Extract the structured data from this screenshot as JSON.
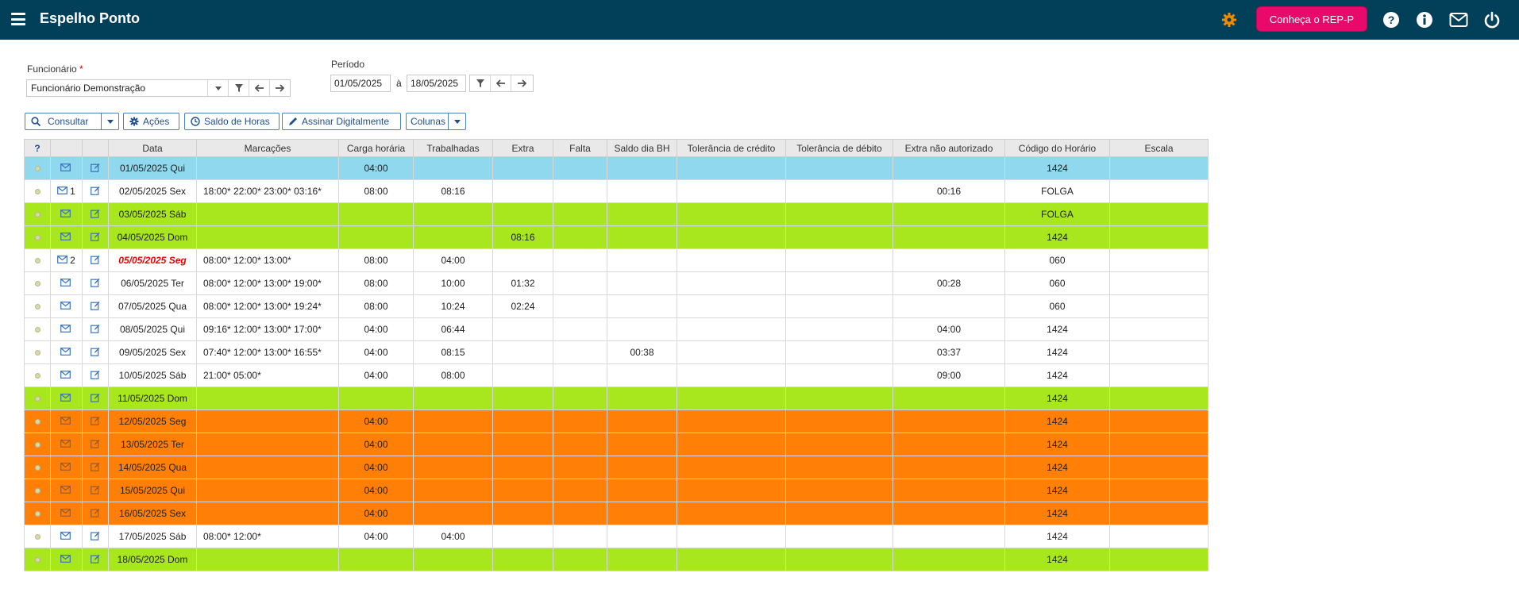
{
  "app": {
    "title": "Espelho Ponto",
    "rep_button": "Conheça o REP-P"
  },
  "form": {
    "funcionario_label": "Funcionário",
    "funcionario_required": "*",
    "funcionario_value": "Funcionário Demonstração",
    "periodo_label": "Período",
    "date_from": "01/05/2025",
    "date_sep": "à",
    "date_to": "18/05/2025"
  },
  "toolbar": {
    "consultar": "Consultar",
    "acoes": "Ações",
    "saldo": "Saldo de Horas",
    "assinar": "Assinar Digitalmente",
    "colunas": "Colunas"
  },
  "table": {
    "headers": [
      "?",
      "",
      "",
      "Data",
      "Marcações",
      "Carga horária",
      "Trabalhadas",
      "Extra",
      "Falta",
      "Saldo dia BH",
      "Tolerância de crédito",
      "Tolerância de débito",
      "Extra não autorizado",
      "Código do Horário",
      "Escala"
    ],
    "rows": [
      {
        "style": "blue",
        "msg_count": "",
        "date": "01/05/2025 Qui",
        "marc": "",
        "carga": "04:00",
        "trab": "",
        "extra": "",
        "falta": "",
        "saldo": "",
        "tcred": "",
        "tdeb": "",
        "extna": "",
        "cod": "1424",
        "escala": ""
      },
      {
        "style": "white",
        "msg_count": "1",
        "date": "02/05/2025 Sex",
        "marc": "18:00* 22:00* 23:00* 03:16*",
        "carga": "08:00",
        "trab": "08:16",
        "extra": "",
        "falta": "",
        "saldo": "",
        "tcred": "",
        "tdeb": "",
        "extna": "00:16",
        "cod": "FOLGA",
        "escala": ""
      },
      {
        "style": "green",
        "msg_count": "",
        "date": "03/05/2025 Sáb",
        "marc": "",
        "carga": "",
        "trab": "",
        "extra": "",
        "falta": "",
        "saldo": "",
        "tcred": "",
        "tdeb": "",
        "extna": "",
        "cod": "FOLGA",
        "escala": ""
      },
      {
        "style": "green",
        "msg_count": "",
        "date": "04/05/2025 Dom",
        "marc": "",
        "carga": "",
        "trab": "",
        "extra": "08:16",
        "falta": "",
        "saldo": "",
        "tcred": "",
        "tdeb": "",
        "extna": "",
        "cod": "1424",
        "escala": ""
      },
      {
        "style": "white",
        "msg_count": "2",
        "date": "05/05/2025 Seg",
        "date_alert": true,
        "marc": "08:00* 12:00* 13:00*",
        "carga": "08:00",
        "trab": "04:00",
        "extra": "",
        "falta": "",
        "saldo": "",
        "tcred": "",
        "tdeb": "",
        "extna": "",
        "cod": "060",
        "escala": ""
      },
      {
        "style": "white",
        "msg_count": "",
        "date": "06/05/2025 Ter",
        "marc": "08:00* 12:00* 13:00* 19:00*",
        "carga": "08:00",
        "trab": "10:00",
        "extra": "01:32",
        "falta": "",
        "saldo": "",
        "tcred": "",
        "tdeb": "",
        "extna": "00:28",
        "cod": "060",
        "escala": ""
      },
      {
        "style": "white",
        "msg_count": "",
        "date": "07/05/2025 Qua",
        "marc": "08:00* 12:00* 13:00* 19:24*",
        "carga": "08:00",
        "trab": "10:24",
        "extra": "02:24",
        "falta": "",
        "saldo": "",
        "tcred": "",
        "tdeb": "",
        "extna": "",
        "cod": "060",
        "escala": ""
      },
      {
        "style": "white",
        "msg_count": "",
        "date": "08/05/2025 Qui",
        "marc": "09:16* 12:00* 13:00* 17:00*",
        "carga": "04:00",
        "trab": "06:44",
        "extra": "",
        "falta": "",
        "saldo": "",
        "tcred": "",
        "tdeb": "",
        "extna": "04:00",
        "cod": "1424",
        "escala": ""
      },
      {
        "style": "white",
        "msg_count": "",
        "date": "09/05/2025 Sex",
        "marc": "07:40* 12:00* 13:00* 16:55*",
        "carga": "04:00",
        "trab": "08:15",
        "extra": "",
        "falta": "",
        "saldo": "00:38",
        "tcred": "",
        "tdeb": "",
        "extna": "03:37",
        "cod": "1424",
        "escala": ""
      },
      {
        "style": "white",
        "msg_count": "",
        "date": "10/05/2025 Sáb",
        "marc": "21:00* 05:00*",
        "carga": "04:00",
        "trab": "08:00",
        "extra": "",
        "falta": "",
        "saldo": "",
        "tcred": "",
        "tdeb": "",
        "extna": "09:00",
        "cod": "1424",
        "escala": ""
      },
      {
        "style": "green",
        "msg_count": "",
        "date": "11/05/2025 Dom",
        "marc": "",
        "carga": "",
        "trab": "",
        "extra": "",
        "falta": "",
        "saldo": "",
        "tcred": "",
        "tdeb": "",
        "extna": "",
        "cod": "1424",
        "escala": ""
      },
      {
        "style": "orange",
        "msg_count": "",
        "date": "12/05/2025 Seg",
        "marc": "",
        "carga": "04:00",
        "trab": "",
        "extra": "",
        "falta": "",
        "saldo": "",
        "tcred": "",
        "tdeb": "",
        "extna": "",
        "cod": "1424",
        "escala": ""
      },
      {
        "style": "orange",
        "msg_count": "",
        "date": "13/05/2025 Ter",
        "marc": "",
        "carga": "04:00",
        "trab": "",
        "extra": "",
        "falta": "",
        "saldo": "",
        "tcred": "",
        "tdeb": "",
        "extna": "",
        "cod": "1424",
        "escala": ""
      },
      {
        "style": "orange",
        "msg_count": "",
        "date": "14/05/2025 Qua",
        "marc": "",
        "carga": "04:00",
        "trab": "",
        "extra": "",
        "falta": "",
        "saldo": "",
        "tcred": "",
        "tdeb": "",
        "extna": "",
        "cod": "1424",
        "escala": ""
      },
      {
        "style": "orange",
        "msg_count": "",
        "date": "15/05/2025 Qui",
        "marc": "",
        "carga": "04:00",
        "trab": "",
        "extra": "",
        "falta": "",
        "saldo": "",
        "tcred": "",
        "tdeb": "",
        "extna": "",
        "cod": "1424",
        "escala": ""
      },
      {
        "style": "orange",
        "msg_count": "",
        "date": "16/05/2025 Sex",
        "marc": "",
        "carga": "04:00",
        "trab": "",
        "extra": "",
        "falta": "",
        "saldo": "",
        "tcred": "",
        "tdeb": "",
        "extna": "",
        "cod": "1424",
        "escala": ""
      },
      {
        "style": "white",
        "msg_count": "",
        "date": "17/05/2025 Sáb",
        "marc": "08:00* 12:00*",
        "carga": "04:00",
        "trab": "04:00",
        "extra": "",
        "falta": "",
        "saldo": "",
        "tcred": "",
        "tdeb": "",
        "extna": "",
        "cod": "1424",
        "escala": ""
      },
      {
        "style": "green",
        "msg_count": "",
        "date": "18/05/2025 Dom",
        "marc": "",
        "carga": "",
        "trab": "",
        "extra": "",
        "falta": "",
        "saldo": "",
        "tcred": "",
        "tdeb": "",
        "extna": "",
        "cod": "1424",
        "escala": ""
      }
    ]
  },
  "colors": {
    "topbar": "#023f59",
    "accent": "#e8096a",
    "gear": "#f08a00",
    "row_blue": "#8fd8ee",
    "row_green": "#a8e61e",
    "row_orange": "#ff7f07"
  },
  "icons": [
    "menu-icon",
    "gear-icon",
    "help-icon",
    "info-icon",
    "mail-icon",
    "power-icon",
    "filter-icon",
    "arrow-left-icon",
    "arrow-right-icon",
    "search-icon",
    "edit-icon",
    "clock-icon"
  ]
}
